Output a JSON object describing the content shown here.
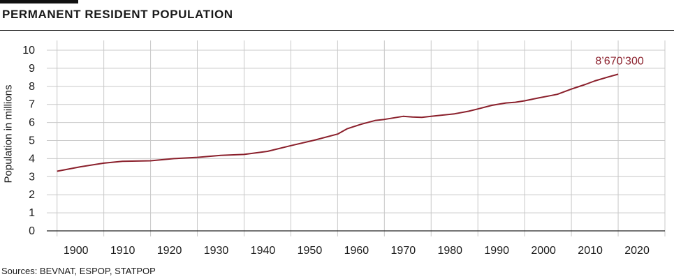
{
  "title": "PERMANENT RESIDENT POPULATION",
  "source": "Sources: BEVNAT, ESPOP, STATPOP",
  "colors": {
    "line": "#8a1f2b",
    "grid": "#c8c8c8",
    "axis": "#222222",
    "text": "#1a1a1a"
  },
  "chart_data": {
    "type": "line",
    "title": "PERMANENT RESIDENT POPULATION",
    "ylabel": "Population in millions",
    "xlabel": "",
    "xlim": [
      1899,
      2030
    ],
    "ylim": [
      0,
      10
    ],
    "x_ticks": [
      "1900",
      "1910",
      "1920",
      "1930",
      "1940",
      "1950",
      "1960",
      "1970",
      "1980",
      "1990",
      "2000",
      "2010",
      "2020"
    ],
    "y_ticks": [
      "0",
      "1",
      "2",
      "3",
      "4",
      "5",
      "6",
      "7",
      "8",
      "9",
      "10"
    ],
    "grid": true,
    "annotation": {
      "text": "8’670’300",
      "x": 2020,
      "y": 8.67
    },
    "series": [
      {
        "x": [
          1900,
          1905,
          1910,
          1914,
          1918,
          1920,
          1925,
          1930,
          1935,
          1940,
          1945,
          1950,
          1955,
          1960,
          1962,
          1965,
          1968,
          1970,
          1974,
          1976,
          1978,
          1980,
          1985,
          1988,
          1990,
          1993,
          1996,
          1998,
          2000,
          2003,
          2005,
          2007,
          2010,
          2013,
          2015,
          2018,
          2020
        ],
        "y": [
          3.3,
          3.55,
          3.75,
          3.85,
          3.87,
          3.88,
          4.0,
          4.07,
          4.18,
          4.23,
          4.4,
          4.72,
          5.02,
          5.36,
          5.65,
          5.9,
          6.11,
          6.17,
          6.34,
          6.3,
          6.28,
          6.34,
          6.48,
          6.62,
          6.75,
          6.95,
          7.08,
          7.12,
          7.2,
          7.36,
          7.46,
          7.56,
          7.85,
          8.11,
          8.3,
          8.53,
          8.67
        ]
      }
    ]
  }
}
